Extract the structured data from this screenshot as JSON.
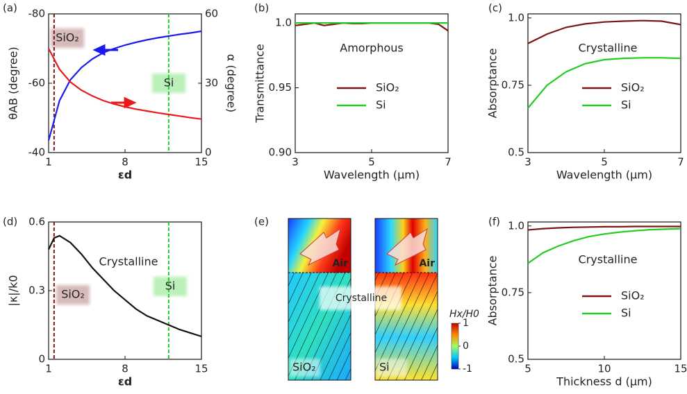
{
  "chart_data": [
    {
      "type": "line",
      "label": "(a)",
      "xlabel": "εd",
      "ylabel": "θAB (degree)",
      "y2label": "α (degree)",
      "xlim": [
        1,
        15
      ],
      "xticks": [
        1,
        8,
        15
      ],
      "ylim": [
        -40,
        -80
      ],
      "yticks": [
        -80,
        -60,
        -40
      ],
      "y2lim": [
        0,
        60
      ],
      "y2ticks": [
        0,
        30,
        60
      ],
      "x": [
        1,
        2,
        3,
        4,
        5,
        6,
        7,
        8,
        9,
        10,
        11,
        12,
        13,
        14,
        15
      ],
      "series": [
        {
          "color": "#1a1aee",
          "values": [
            -43.5,
            -55,
            -61,
            -64.5,
            -67,
            -68.8,
            -70,
            -71,
            -71.8,
            -72.5,
            -73.1,
            -73.6,
            -74.1,
            -74.5,
            -75
          ]
        },
        {
          "color": "#e81a1a",
          "axis": "y2",
          "values": [
            45,
            36,
            30.5,
            27,
            24.5,
            22.5,
            21,
            19.8,
            18.8,
            18,
            17.2,
            16.5,
            15.8,
            15.1,
            14.5
          ]
        }
      ],
      "vlines": [
        {
          "x": 1.5,
          "label": "SiO₂",
          "color": "#7b1515"
        },
        {
          "x": 12,
          "label": "Si",
          "color": "#22cc22"
        }
      ]
    },
    {
      "type": "line",
      "label": "(b)",
      "xlabel": "Wavelength  (μm)",
      "ylabel": "Transmittance",
      "annotation": "Amorphous",
      "xlim": [
        3,
        7
      ],
      "xticks": [
        3,
        5,
        7
      ],
      "ylim": [
        0.9,
        1.007
      ],
      "yticks": [
        {
          "value": 0.9,
          "label": "0.90"
        },
        0.95,
        {
          "value": 1,
          "label": "1.0"
        }
      ],
      "x": [
        3,
        3.25,
        3.5,
        3.75,
        4,
        4.25,
        4.5,
        4.75,
        5,
        5.25,
        5.5,
        5.75,
        6,
        6.25,
        6.5,
        6.75,
        7
      ],
      "series": [
        {
          "name": "SiO₂",
          "color": "#7b1515",
          "values": [
            0.998,
            0.999,
            1.0,
            0.998,
            0.999,
            1.0,
            0.9995,
            0.9995,
            1.0,
            1.0,
            1.0,
            1.0,
            1.0,
            1.0,
            1.0,
            0.999,
            0.994
          ]
        },
        {
          "name": "Si",
          "color": "#22cc22",
          "values": [
            1,
            1,
            1,
            1,
            1,
            1,
            1,
            1,
            1,
            1,
            1,
            1,
            1,
            1,
            1,
            1,
            1
          ]
        }
      ]
    },
    {
      "type": "line",
      "label": "(c)",
      "xlabel": "Wavelength (μm)",
      "ylabel": "Absorptance",
      "annotation": "Crystalline",
      "xlim": [
        3,
        7
      ],
      "xticks": [
        3,
        5,
        7
      ],
      "ylim": [
        0.5,
        1.015
      ],
      "yticks": [
        0.5,
        0.75,
        {
          "value": 1,
          "label": "1.0"
        }
      ],
      "x": [
        3,
        3.5,
        4,
        4.5,
        5,
        5.5,
        6,
        6.5,
        7
      ],
      "series": [
        {
          "name": "SiO₂",
          "color": "#7b1515",
          "values": [
            0.905,
            0.94,
            0.965,
            0.978,
            0.985,
            0.988,
            0.99,
            0.988,
            0.975
          ]
        },
        {
          "name": "Si",
          "color": "#22cc22",
          "values": [
            0.665,
            0.75,
            0.8,
            0.83,
            0.845,
            0.85,
            0.852,
            0.852,
            0.85
          ]
        }
      ]
    },
    {
      "type": "line",
      "label": "(d)",
      "xlabel": "εd",
      "ylabel": "|κ|/k0",
      "annotation": "Crystalline",
      "xlim": [
        1,
        15
      ],
      "xticks": [
        1,
        8,
        15
      ],
      "ylim": [
        0,
        0.6
      ],
      "yticks": [
        0,
        0.3,
        0.6
      ],
      "x": [
        1,
        1.5,
        2,
        3,
        4,
        5,
        6,
        7,
        8,
        9,
        10,
        11,
        12,
        13,
        14,
        15
      ],
      "series": [
        {
          "color": "#111111",
          "values": [
            0.48,
            0.53,
            0.54,
            0.51,
            0.46,
            0.4,
            0.35,
            0.3,
            0.26,
            0.22,
            0.19,
            0.17,
            0.15,
            0.13,
            0.115,
            0.1
          ]
        }
      ],
      "vlines": [
        {
          "x": 1.5,
          "label": "SiO₂",
          "color": "#7b1515"
        },
        {
          "x": 12,
          "label": "Si",
          "color": "#22cc22"
        }
      ]
    },
    {
      "type": "field-map",
      "label": "(e)",
      "annotation": "Crystalline",
      "panels": [
        {
          "top": "Air",
          "bottom": "SiO₂"
        },
        {
          "top": "Air",
          "bottom": "Si"
        }
      ],
      "colorbar_label": "Hx/H0",
      "colorbar_lim": [
        -1,
        1
      ],
      "colorbar_ticks": [
        1,
        0,
        -1
      ]
    },
    {
      "type": "line",
      "label": "(f)",
      "xlabel": "Thickness d (μm)",
      "ylabel": "Absorptance",
      "annotation": "Crystalline",
      "xlim": [
        5,
        15
      ],
      "xticks": [
        5,
        10,
        15
      ],
      "ylim": [
        0.5,
        1.015
      ],
      "yticks": [
        0.5,
        0.75,
        {
          "value": 1,
          "label": "1.0"
        }
      ],
      "x": [
        5,
        6,
        7,
        8,
        9,
        10,
        11,
        12,
        13,
        14,
        15
      ],
      "series": [
        {
          "name": "SiO₂",
          "color": "#7b1515",
          "values": [
            0.985,
            0.99,
            0.993,
            0.995,
            0.996,
            0.997,
            0.997,
            0.998,
            0.998,
            0.998,
            0.998
          ]
        },
        {
          "name": "Si",
          "color": "#22cc22",
          "values": [
            0.86,
            0.9,
            0.925,
            0.945,
            0.96,
            0.97,
            0.977,
            0.982,
            0.986,
            0.988,
            0.99
          ]
        }
      ]
    }
  ]
}
